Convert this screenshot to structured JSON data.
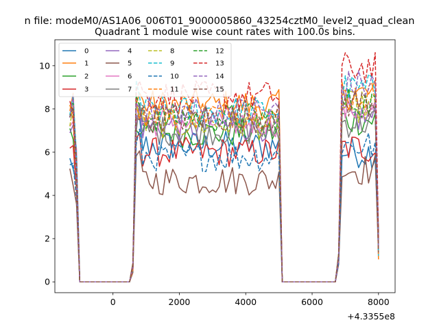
{
  "suptitle": "n file: modeM0/AS1A06_006T01_9000005860_43254cztM0_level2_quad_clean",
  "chart_data": {
    "type": "line",
    "title": "Quadrant 1 module wise count rates with 100.0s bins.",
    "xlabel": "",
    "ylabel": "",
    "x_offset_label": "+4.3355e8",
    "xlim": [
      -1750,
      8500
    ],
    "ylim": [
      -0.5,
      11.2
    ],
    "xticks": [
      0,
      2000,
      4000,
      6000,
      8000
    ],
    "xtick_labels": [
      "0",
      "2000",
      "4000",
      "6000",
      "8000"
    ],
    "yticks": [
      0,
      2,
      4,
      6,
      8,
      10
    ],
    "ytick_labels": [
      "0",
      "2",
      "4",
      "6",
      "8",
      "10"
    ],
    "grid": false,
    "legend_placement": "top-left",
    "legend_columns": 4,
    "series": [
      {
        "name": "0",
        "color": "#1f77b4",
        "style": "solid",
        "levels": [
          5.5,
          6.3,
          6.0
        ]
      },
      {
        "name": "1",
        "color": "#ff7f0e",
        "style": "solid",
        "levels": [
          8.3,
          8.2,
          8.7
        ]
      },
      {
        "name": "2",
        "color": "#2ca02c",
        "style": "solid",
        "levels": [
          7.0,
          6.9,
          7.5
        ]
      },
      {
        "name": "3",
        "color": "#d62728",
        "style": "solid",
        "levels": [
          6.4,
          6.0,
          6.2
        ]
      },
      {
        "name": "4",
        "color": "#9467bd",
        "style": "solid",
        "levels": [
          7.5,
          7.2,
          7.6
        ]
      },
      {
        "name": "5",
        "color": "#8c564b",
        "style": "solid",
        "levels": [
          5.0,
          4.7,
          5.2
        ]
      },
      {
        "name": "6",
        "color": "#e377c2",
        "style": "solid",
        "levels": [
          7.8,
          7.4,
          8.0
        ]
      },
      {
        "name": "7",
        "color": "#7f7f7f",
        "style": "solid",
        "levels": [
          7.2,
          7.0,
          7.4
        ]
      },
      {
        "name": "8",
        "color": "#bcbd22",
        "style": "dashed",
        "levels": [
          7.7,
          7.3,
          8.1
        ]
      },
      {
        "name": "9",
        "color": "#17becf",
        "style": "dashed",
        "levels": [
          8.0,
          7.9,
          8.9
        ]
      },
      {
        "name": "10",
        "color": "#1f77b4",
        "style": "dashed",
        "levels": [
          6.0,
          5.8,
          6.3
        ]
      },
      {
        "name": "11",
        "color": "#ff7f0e",
        "style": "dashed",
        "levels": [
          8.1,
          7.8,
          8.6
        ]
      },
      {
        "name": "12",
        "color": "#2ca02c",
        "style": "dashed",
        "levels": [
          7.9,
          7.6,
          8.3
        ]
      },
      {
        "name": "13",
        "color": "#d62728",
        "style": "dashed",
        "levels": [
          8.5,
          8.6,
          9.9
        ]
      },
      {
        "name": "14",
        "color": "#9467bd",
        "style": "dashed",
        "levels": [
          8.2,
          7.9,
          9.1
        ]
      },
      {
        "name": "15",
        "color": "#8c564b",
        "style": "dashed",
        "levels": [
          7.6,
          7.6,
          8.3
        ]
      }
    ],
    "active_intervals": [
      [
        -1300,
        -1000
      ],
      [
        600,
        5000
      ],
      [
        6900,
        8000
      ]
    ]
  }
}
